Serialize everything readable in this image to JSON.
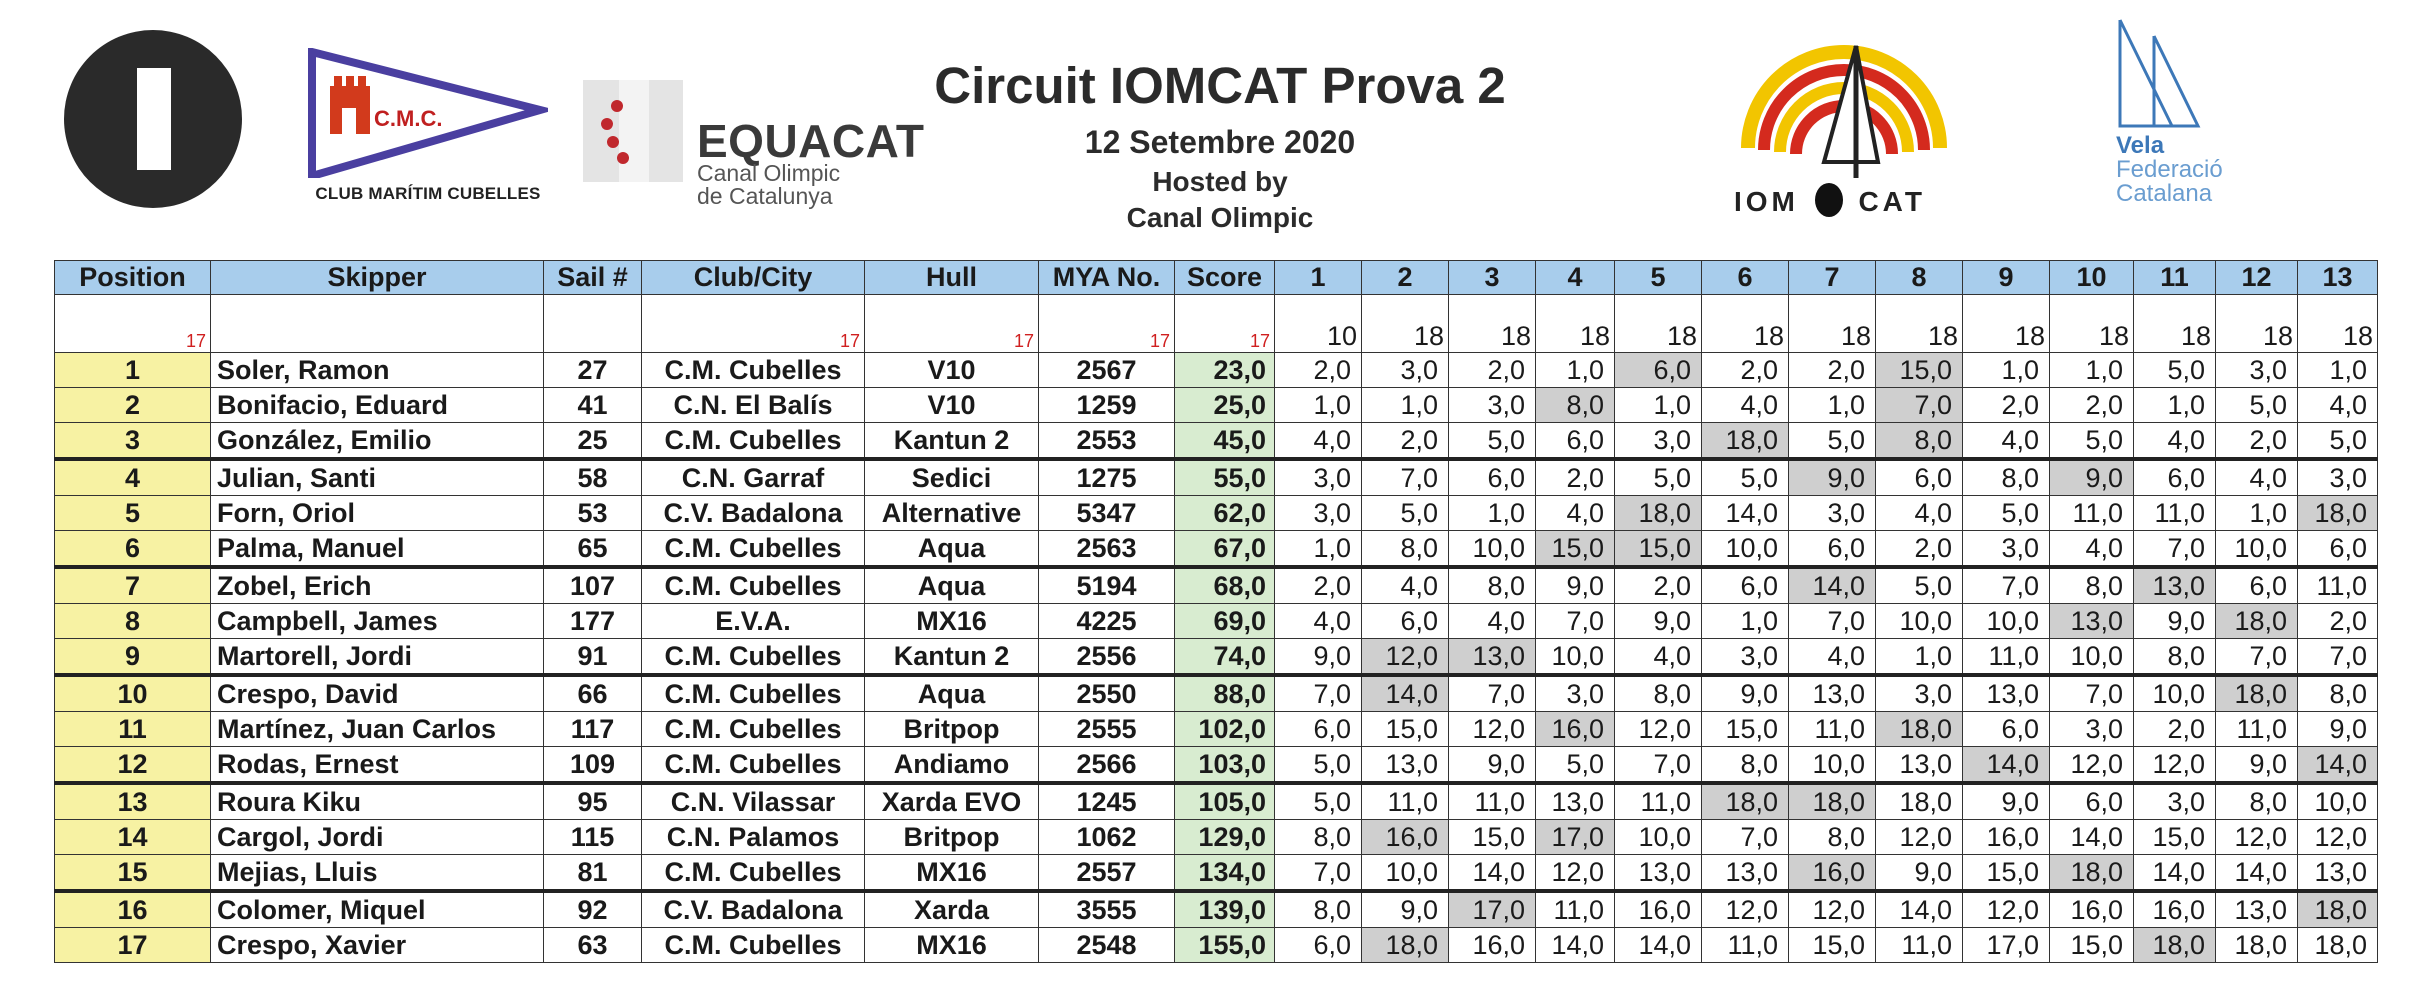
{
  "header": {
    "title": "Circuit IOMCAT Prova 2",
    "date": "12 Setembre 2020",
    "hosted_line1": "Hosted by",
    "hosted_line2": "Canal Olimpic",
    "cmc_flag_text": "C.M.C.",
    "cmc_caption": "CLUB MARÍTIM CUBELLES",
    "equacat_name": "EQUACAT",
    "equacat_sub1": "Canal Olimpic",
    "equacat_sub2": "de Catalunya",
    "iomcat_left": "IOM",
    "iomcat_right": "CAT",
    "vela_line1": "Vela",
    "vela_line2": "Federació",
    "vela_line3": "Catalana"
  },
  "colors": {
    "header_bg": "#a8cdec",
    "position_bg": "#f7f2a3",
    "score_bg": "#d8ecd0",
    "discard_bg": "#cfcfcf",
    "count_red": "#d02020"
  },
  "table": {
    "columns": [
      "Position",
      "Skipper",
      "Sail #",
      "Club/City",
      "Hull",
      "MYA No.",
      "Score",
      "1",
      "2",
      "3",
      "4",
      "5",
      "6",
      "7",
      "8",
      "9",
      "10",
      "11",
      "12",
      "13"
    ],
    "column_counts": [
      "17",
      "",
      "",
      "17",
      "17",
      "17",
      "17"
    ],
    "race_counts": [
      "10",
      "18",
      "18",
      "18",
      "18",
      "18",
      "18",
      "18",
      "18",
      "18",
      "18",
      "18",
      "18"
    ],
    "rows": [
      {
        "position": "1",
        "skipper": "Soler, Ramon",
        "sail": "27",
        "club": "C.M. Cubelles",
        "hull": "V10",
        "mya": "2567",
        "score": "23,0",
        "races": [
          "2,0",
          "3,0",
          "2,0",
          "1,0",
          "6,0",
          "2,0",
          "2,0",
          "15,0",
          "1,0",
          "1,0",
          "5,0",
          "3,0",
          "1,0"
        ],
        "discards": [
          4,
          7
        ]
      },
      {
        "position": "2",
        "skipper": "Bonifacio, Eduard",
        "sail": "41",
        "club": "C.N. El Balís",
        "hull": "V10",
        "mya": "1259",
        "score": "25,0",
        "races": [
          "1,0",
          "1,0",
          "3,0",
          "8,0",
          "1,0",
          "4,0",
          "1,0",
          "7,0",
          "2,0",
          "2,0",
          "1,0",
          "5,0",
          "4,0"
        ],
        "discards": [
          3,
          7
        ]
      },
      {
        "position": "3",
        "skipper": "González, Emilio",
        "sail": "25",
        "club": "C.M. Cubelles",
        "hull": "Kantun 2",
        "mya": "2553",
        "score": "45,0",
        "races": [
          "4,0",
          "2,0",
          "5,0",
          "6,0",
          "3,0",
          "18,0",
          "5,0",
          "8,0",
          "4,0",
          "5,0",
          "4,0",
          "2,0",
          "5,0"
        ],
        "discards": [
          5,
          7
        ]
      },
      {
        "position": "4",
        "skipper": "Julian, Santi",
        "sail": "58",
        "club": "C.N. Garraf",
        "hull": "Sedici",
        "mya": "1275",
        "score": "55,0",
        "races": [
          "3,0",
          "7,0",
          "6,0",
          "2,0",
          "5,0",
          "5,0",
          "9,0",
          "6,0",
          "8,0",
          "9,0",
          "6,0",
          "4,0",
          "3,0"
        ],
        "discards": [
          6,
          9
        ]
      },
      {
        "position": "5",
        "skipper": "Forn, Oriol",
        "sail": "53",
        "club": "C.V. Badalona",
        "hull": "Alternative",
        "mya": "5347",
        "score": "62,0",
        "races": [
          "3,0",
          "5,0",
          "1,0",
          "4,0",
          "18,0",
          "14,0",
          "3,0",
          "4,0",
          "5,0",
          "11,0",
          "11,0",
          "1,0",
          "18,0"
        ],
        "discards": [
          4,
          12
        ]
      },
      {
        "position": "6",
        "skipper": "Palma, Manuel",
        "sail": "65",
        "club": "C.M. Cubelles",
        "hull": "Aqua",
        "mya": "2563",
        "score": "67,0",
        "races": [
          "1,0",
          "8,0",
          "10,0",
          "15,0",
          "15,0",
          "10,0",
          "6,0",
          "2,0",
          "3,0",
          "4,0",
          "7,0",
          "10,0",
          "6,0"
        ],
        "discards": [
          3,
          4
        ]
      },
      {
        "position": "7",
        "skipper": "Zobel, Erich",
        "sail": "107",
        "club": "C.M. Cubelles",
        "hull": "Aqua",
        "mya": "5194",
        "score": "68,0",
        "races": [
          "2,0",
          "4,0",
          "8,0",
          "9,0",
          "2,0",
          "6,0",
          "14,0",
          "5,0",
          "7,0",
          "8,0",
          "13,0",
          "6,0",
          "11,0"
        ],
        "discards": [
          6,
          10
        ]
      },
      {
        "position": "8",
        "skipper": "Campbell, James",
        "sail": "177",
        "club": "E.V.A.",
        "hull": "MX16",
        "mya": "4225",
        "score": "69,0",
        "races": [
          "4,0",
          "6,0",
          "4,0",
          "7,0",
          "9,0",
          "1,0",
          "7,0",
          "10,0",
          "10,0",
          "13,0",
          "9,0",
          "18,0",
          "2,0"
        ],
        "discards": [
          9,
          11
        ]
      },
      {
        "position": "9",
        "skipper": "Martorell, Jordi",
        "sail": "91",
        "club": "C.M. Cubelles",
        "hull": "Kantun 2",
        "mya": "2556",
        "score": "74,0",
        "races": [
          "9,0",
          "12,0",
          "13,0",
          "10,0",
          "4,0",
          "3,0",
          "4,0",
          "1,0",
          "11,0",
          "10,0",
          "8,0",
          "7,0",
          "7,0"
        ],
        "discards": [
          1,
          2
        ]
      },
      {
        "position": "10",
        "skipper": "Crespo, David",
        "sail": "66",
        "club": "C.M. Cubelles",
        "hull": "Aqua",
        "mya": "2550",
        "score": "88,0",
        "races": [
          "7,0",
          "14,0",
          "7,0",
          "3,0",
          "8,0",
          "9,0",
          "13,0",
          "3,0",
          "13,0",
          "7,0",
          "10,0",
          "18,0",
          "8,0"
        ],
        "discards": [
          1,
          11
        ]
      },
      {
        "position": "11",
        "skipper": "Martínez, Juan Carlos",
        "sail": "117",
        "club": "C.M. Cubelles",
        "hull": "Britpop",
        "mya": "2555",
        "score": "102,0",
        "races": [
          "6,0",
          "15,0",
          "12,0",
          "16,0",
          "12,0",
          "15,0",
          "11,0",
          "18,0",
          "6,0",
          "3,0",
          "2,0",
          "11,0",
          "9,0"
        ],
        "discards": [
          3,
          7
        ]
      },
      {
        "position": "12",
        "skipper": "Rodas, Ernest",
        "sail": "109",
        "club": "C.M. Cubelles",
        "hull": "Andiamo",
        "mya": "2566",
        "score": "103,0",
        "races": [
          "5,0",
          "13,0",
          "9,0",
          "5,0",
          "7,0",
          "8,0",
          "10,0",
          "13,0",
          "14,0",
          "12,0",
          "12,0",
          "9,0",
          "14,0"
        ],
        "discards": [
          8,
          12
        ]
      },
      {
        "position": "13",
        "skipper": "Roura Kiku",
        "sail": "95",
        "club": "C.N. Vilassar",
        "hull": "Xarda EVO",
        "mya": "1245",
        "score": "105,0",
        "races": [
          "5,0",
          "11,0",
          "11,0",
          "13,0",
          "11,0",
          "18,0",
          "18,0",
          "18,0",
          "9,0",
          "6,0",
          "3,0",
          "8,0",
          "10,0"
        ],
        "discards": [
          5,
          6
        ]
      },
      {
        "position": "14",
        "skipper": "Cargol, Jordi",
        "sail": "115",
        "club": "C.N. Palamos",
        "hull": "Britpop",
        "mya": "1062",
        "score": "129,0",
        "races": [
          "8,0",
          "16,0",
          "15,0",
          "17,0",
          "10,0",
          "7,0",
          "8,0",
          "12,0",
          "16,0",
          "14,0",
          "15,0",
          "12,0",
          "12,0"
        ],
        "discards": [
          1,
          3
        ]
      },
      {
        "position": "15",
        "skipper": "Mejias, Lluis",
        "sail": "81",
        "club": "C.M. Cubelles",
        "hull": "MX16",
        "mya": "2557",
        "score": "134,0",
        "races": [
          "7,0",
          "10,0",
          "14,0",
          "12,0",
          "13,0",
          "13,0",
          "16,0",
          "9,0",
          "15,0",
          "18,0",
          "14,0",
          "14,0",
          "13,0"
        ],
        "discards": [
          6,
          9
        ]
      },
      {
        "position": "16",
        "skipper": "Colomer, Miquel",
        "sail": "92",
        "club": "C.V. Badalona",
        "hull": "Xarda",
        "mya": "3555",
        "score": "139,0",
        "races": [
          "8,0",
          "9,0",
          "17,0",
          "11,0",
          "16,0",
          "12,0",
          "12,0",
          "14,0",
          "12,0",
          "16,0",
          "16,0",
          "13,0",
          "18,0"
        ],
        "discards": [
          2,
          12
        ]
      },
      {
        "position": "17",
        "skipper": "Crespo, Xavier",
        "sail": "63",
        "club": "C.M. Cubelles",
        "hull": "MX16",
        "mya": "2548",
        "score": "155,0",
        "races": [
          "6,0",
          "18,0",
          "16,0",
          "14,0",
          "14,0",
          "11,0",
          "15,0",
          "11,0",
          "17,0",
          "15,0",
          "18,0",
          "18,0",
          "18,0"
        ],
        "discards": [
          1,
          10
        ]
      }
    ]
  }
}
